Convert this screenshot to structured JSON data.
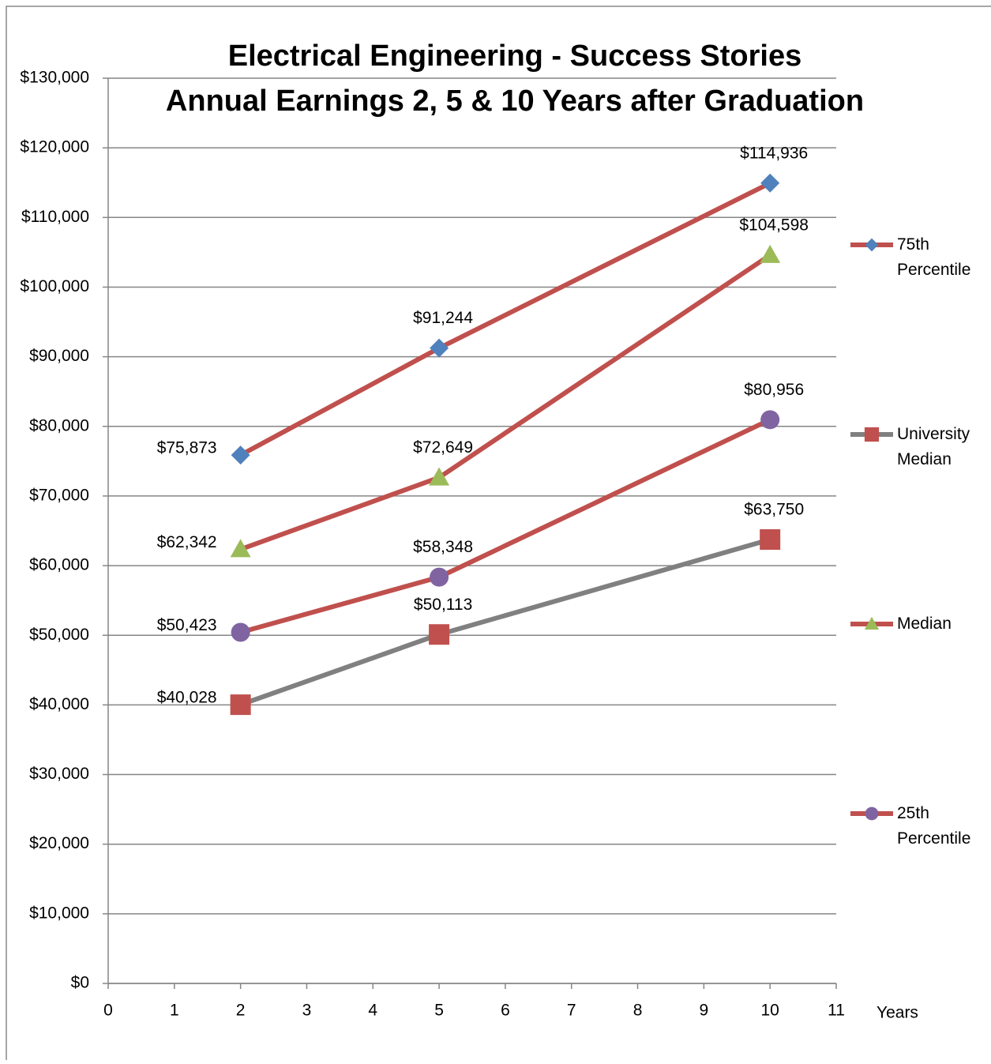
{
  "chart_data": {
    "type": "line",
    "title": "Electrical Engineering - Success Stories",
    "subtitle": "Annual Earnings 2, 5 & 10 Years after Graduation",
    "x_label": "Years",
    "x": [
      2,
      5,
      10
    ],
    "xlim": [
      0,
      11
    ],
    "xticks": [
      0,
      1,
      2,
      3,
      4,
      5,
      6,
      7,
      8,
      9,
      10,
      11
    ],
    "ylim": [
      0,
      130000
    ],
    "yticks": [
      {
        "value": 0,
        "label": "$0"
      },
      {
        "value": 10000,
        "label": "$10,000"
      },
      {
        "value": 20000,
        "label": "$20,000"
      },
      {
        "value": 30000,
        "label": "$30,000"
      },
      {
        "value": 40000,
        "label": "$40,000"
      },
      {
        "value": 50000,
        "label": "$50,000"
      },
      {
        "value": 60000,
        "label": "$60,000"
      },
      {
        "value": 70000,
        "label": "$70,000"
      },
      {
        "value": 80000,
        "label": "$80,000"
      },
      {
        "value": 90000,
        "label": "$90,000"
      },
      {
        "value": 100000,
        "label": "$100,000"
      },
      {
        "value": 110000,
        "label": "$110,000"
      },
      {
        "value": 120000,
        "label": "$120,000"
      },
      {
        "value": 130000,
        "label": "$130,000"
      }
    ],
    "grid": true,
    "legend": "right",
    "series": [
      {
        "name": "75th Percentile",
        "color": "#c0504d",
        "marker": "diamond",
        "marker_color": "#4f81bd",
        "values": [
          75873,
          91244,
          114936
        ],
        "value_labels": [
          "$75,873",
          "$91,244",
          "$114,936"
        ]
      },
      {
        "name": "University Median",
        "color": "#808080",
        "marker": "square",
        "marker_color": "#c0504d",
        "values": [
          40028,
          50113,
          63750
        ],
        "value_labels": [
          "$40,028",
          "$50,113",
          "$63,750"
        ]
      },
      {
        "name": "Median",
        "color": "#c0504d",
        "marker": "triangle",
        "marker_color": "#9bbb59",
        "values": [
          62342,
          72649,
          104598
        ],
        "value_labels": [
          "$62,342",
          "$72,649",
          "$104,598"
        ]
      },
      {
        "name": "25th Percentile",
        "color": "#c0504d",
        "marker": "circle",
        "marker_color": "#8064a2",
        "values": [
          50423,
          58348,
          80956
        ],
        "value_labels": [
          "$50,423",
          "$58,348",
          "$80,956"
        ]
      }
    ]
  }
}
